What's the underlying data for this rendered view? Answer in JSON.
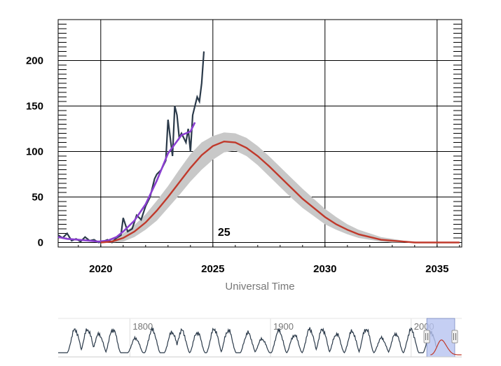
{
  "chart_data": {
    "type": "line",
    "title": "",
    "xlabel": "Universal Time",
    "ylabel": "",
    "xlim": [
      2018.1,
      2036.1
    ],
    "ylim": [
      -5,
      245
    ],
    "x_ticks": [
      2020,
      2025,
      2030,
      2035
    ],
    "y_ticks": [
      0,
      50,
      100,
      150,
      200
    ],
    "grid": true,
    "legend": "none",
    "annotations": [
      {
        "text": "25",
        "x": 2025.5,
        "y": 12
      }
    ],
    "series": [
      {
        "id": "monthly",
        "color": "#2b3a4a",
        "x": [
          2018.1,
          2018.3,
          2018.5,
          2018.7,
          2018.9,
          2019.1,
          2019.3,
          2019.5,
          2019.7,
          2019.9,
          2020.1,
          2020.3,
          2020.5,
          2020.7,
          2020.9,
          2021.0,
          2021.2,
          2021.4,
          2021.6,
          2021.8,
          2022.0,
          2022.2,
          2022.4,
          2022.5,
          2022.7,
          2022.9,
          2023.0,
          2023.2,
          2023.3,
          2023.4,
          2023.5,
          2023.6,
          2023.8,
          2023.9,
          2024.0,
          2024.1,
          2024.3,
          2024.4,
          2024.5,
          2024.6
        ],
        "y": [
          8,
          5,
          10,
          2,
          4,
          1,
          6,
          2,
          3,
          0,
          1,
          3,
          0,
          5,
          8,
          27,
          12,
          15,
          30,
          25,
          40,
          50,
          70,
          75,
          80,
          90,
          135,
          95,
          150,
          140,
          115,
          120,
          110,
          125,
          100,
          140,
          160,
          155,
          175,
          210
        ]
      },
      {
        "id": "smoothed",
        "color": "#8a3fd0",
        "x": [
          2018.1,
          2018.5,
          2019.0,
          2019.5,
          2019.9,
          2020.3,
          2020.7,
          2021.0,
          2021.5,
          2022.0,
          2022.5,
          2023.0,
          2023.3,
          2023.6,
          2024.0,
          2024.2
        ],
        "y": [
          6,
          4,
          3,
          2,
          1,
          2,
          6,
          12,
          24,
          42,
          68,
          98,
          108,
          118,
          122,
          132
        ]
      },
      {
        "id": "predicted",
        "color": "#c0392b",
        "x": [
          2020.0,
          2020.5,
          2021.0,
          2021.5,
          2022.0,
          2022.5,
          2023.0,
          2023.5,
          2024.0,
          2024.5,
          2025.0,
          2025.5,
          2026.0,
          2026.5,
          2027.0,
          2027.5,
          2028.0,
          2028.5,
          2029.0,
          2029.5,
          2030.0,
          2030.5,
          2031.0,
          2031.5,
          2032.0,
          2032.5,
          2033.0,
          2033.5,
          2034.0,
          2034.5,
          2035.0,
          2035.5,
          2036.0
        ],
        "y": [
          0,
          1,
          5,
          12,
          22,
          35,
          50,
          66,
          82,
          96,
          106,
          111,
          110,
          104,
          95,
          84,
          72,
          60,
          48,
          38,
          28,
          20,
          14,
          9,
          6,
          3,
          2,
          1,
          0,
          0,
          0,
          0,
          0
        ],
        "band_lower": [
          0,
          0,
          1,
          6,
          14,
          24,
          38,
          52,
          67,
          80,
          91,
          99,
          101,
          95,
          85,
          73,
          61,
          49,
          38,
          29,
          20,
          14,
          9,
          5,
          3,
          1,
          0,
          0,
          0,
          0,
          0,
          0,
          0
        ],
        "band_upper": [
          2,
          4,
          10,
          19,
          31,
          46,
          62,
          80,
          97,
          110,
          117,
          121,
          120,
          115,
          106,
          95,
          83,
          71,
          59,
          48,
          37,
          28,
          20,
          14,
          10,
          6,
          4,
          2,
          1,
          0,
          0,
          0,
          0
        ]
      }
    ],
    "navigator": {
      "x_ticks": [
        1800,
        1900,
        2000
      ],
      "xlim": [
        1749,
        2036
      ],
      "selection": [
        2018.1,
        2036.1
      ],
      "cycle_peaks": [
        1761,
        1770,
        1778,
        1788,
        1804,
        1816,
        1830,
        1837,
        1848,
        1860,
        1870,
        1884,
        1894,
        1906,
        1917,
        1928,
        1937,
        1947,
        1958,
        1968,
        1979,
        1989,
        2000,
        2014,
        2025
      ]
    }
  }
}
